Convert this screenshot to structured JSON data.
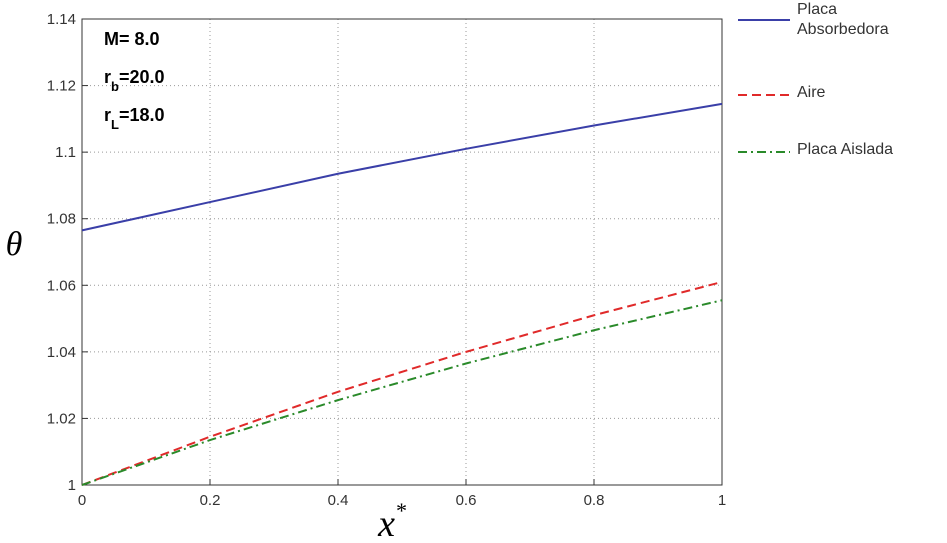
{
  "chart_data": {
    "type": "line",
    "x_label": "x",
    "x_label_sup": "*",
    "y_label": "θ",
    "annotations": [
      [
        "M= 8.0"
      ],
      [
        "r",
        "b",
        "=20.0"
      ],
      [
        "r",
        "L",
        "=18.0"
      ]
    ],
    "x": [
      0,
      0.2,
      0.4,
      0.6,
      0.8,
      1
    ],
    "series": [
      {
        "name": "Placa Absorbedora",
        "color": "#3a3fa8",
        "dash": "solid",
        "values": [
          1.0765,
          1.085,
          1.0935,
          1.101,
          1.108,
          1.1145
        ]
      },
      {
        "name": "Aire",
        "color": "#e02a2a",
        "dash": "dashed",
        "values": [
          1.0,
          1.0145,
          1.028,
          1.04,
          1.051,
          1.061
        ]
      },
      {
        "name": "Placa Aislada",
        "color": "#2a8a2a",
        "dash": "dashdot",
        "values": [
          1.0,
          1.0135,
          1.0255,
          1.0365,
          1.0465,
          1.0555
        ]
      }
    ],
    "xlim": [
      0,
      1
    ],
    "xticks": [
      0,
      0.2,
      0.4,
      0.6,
      0.8,
      1
    ],
    "ylim": [
      1,
      1.14
    ],
    "yticks": [
      1,
      1.02,
      1.04,
      1.06,
      1.08,
      1.1,
      1.12,
      1.14
    ],
    "grid": true
  }
}
